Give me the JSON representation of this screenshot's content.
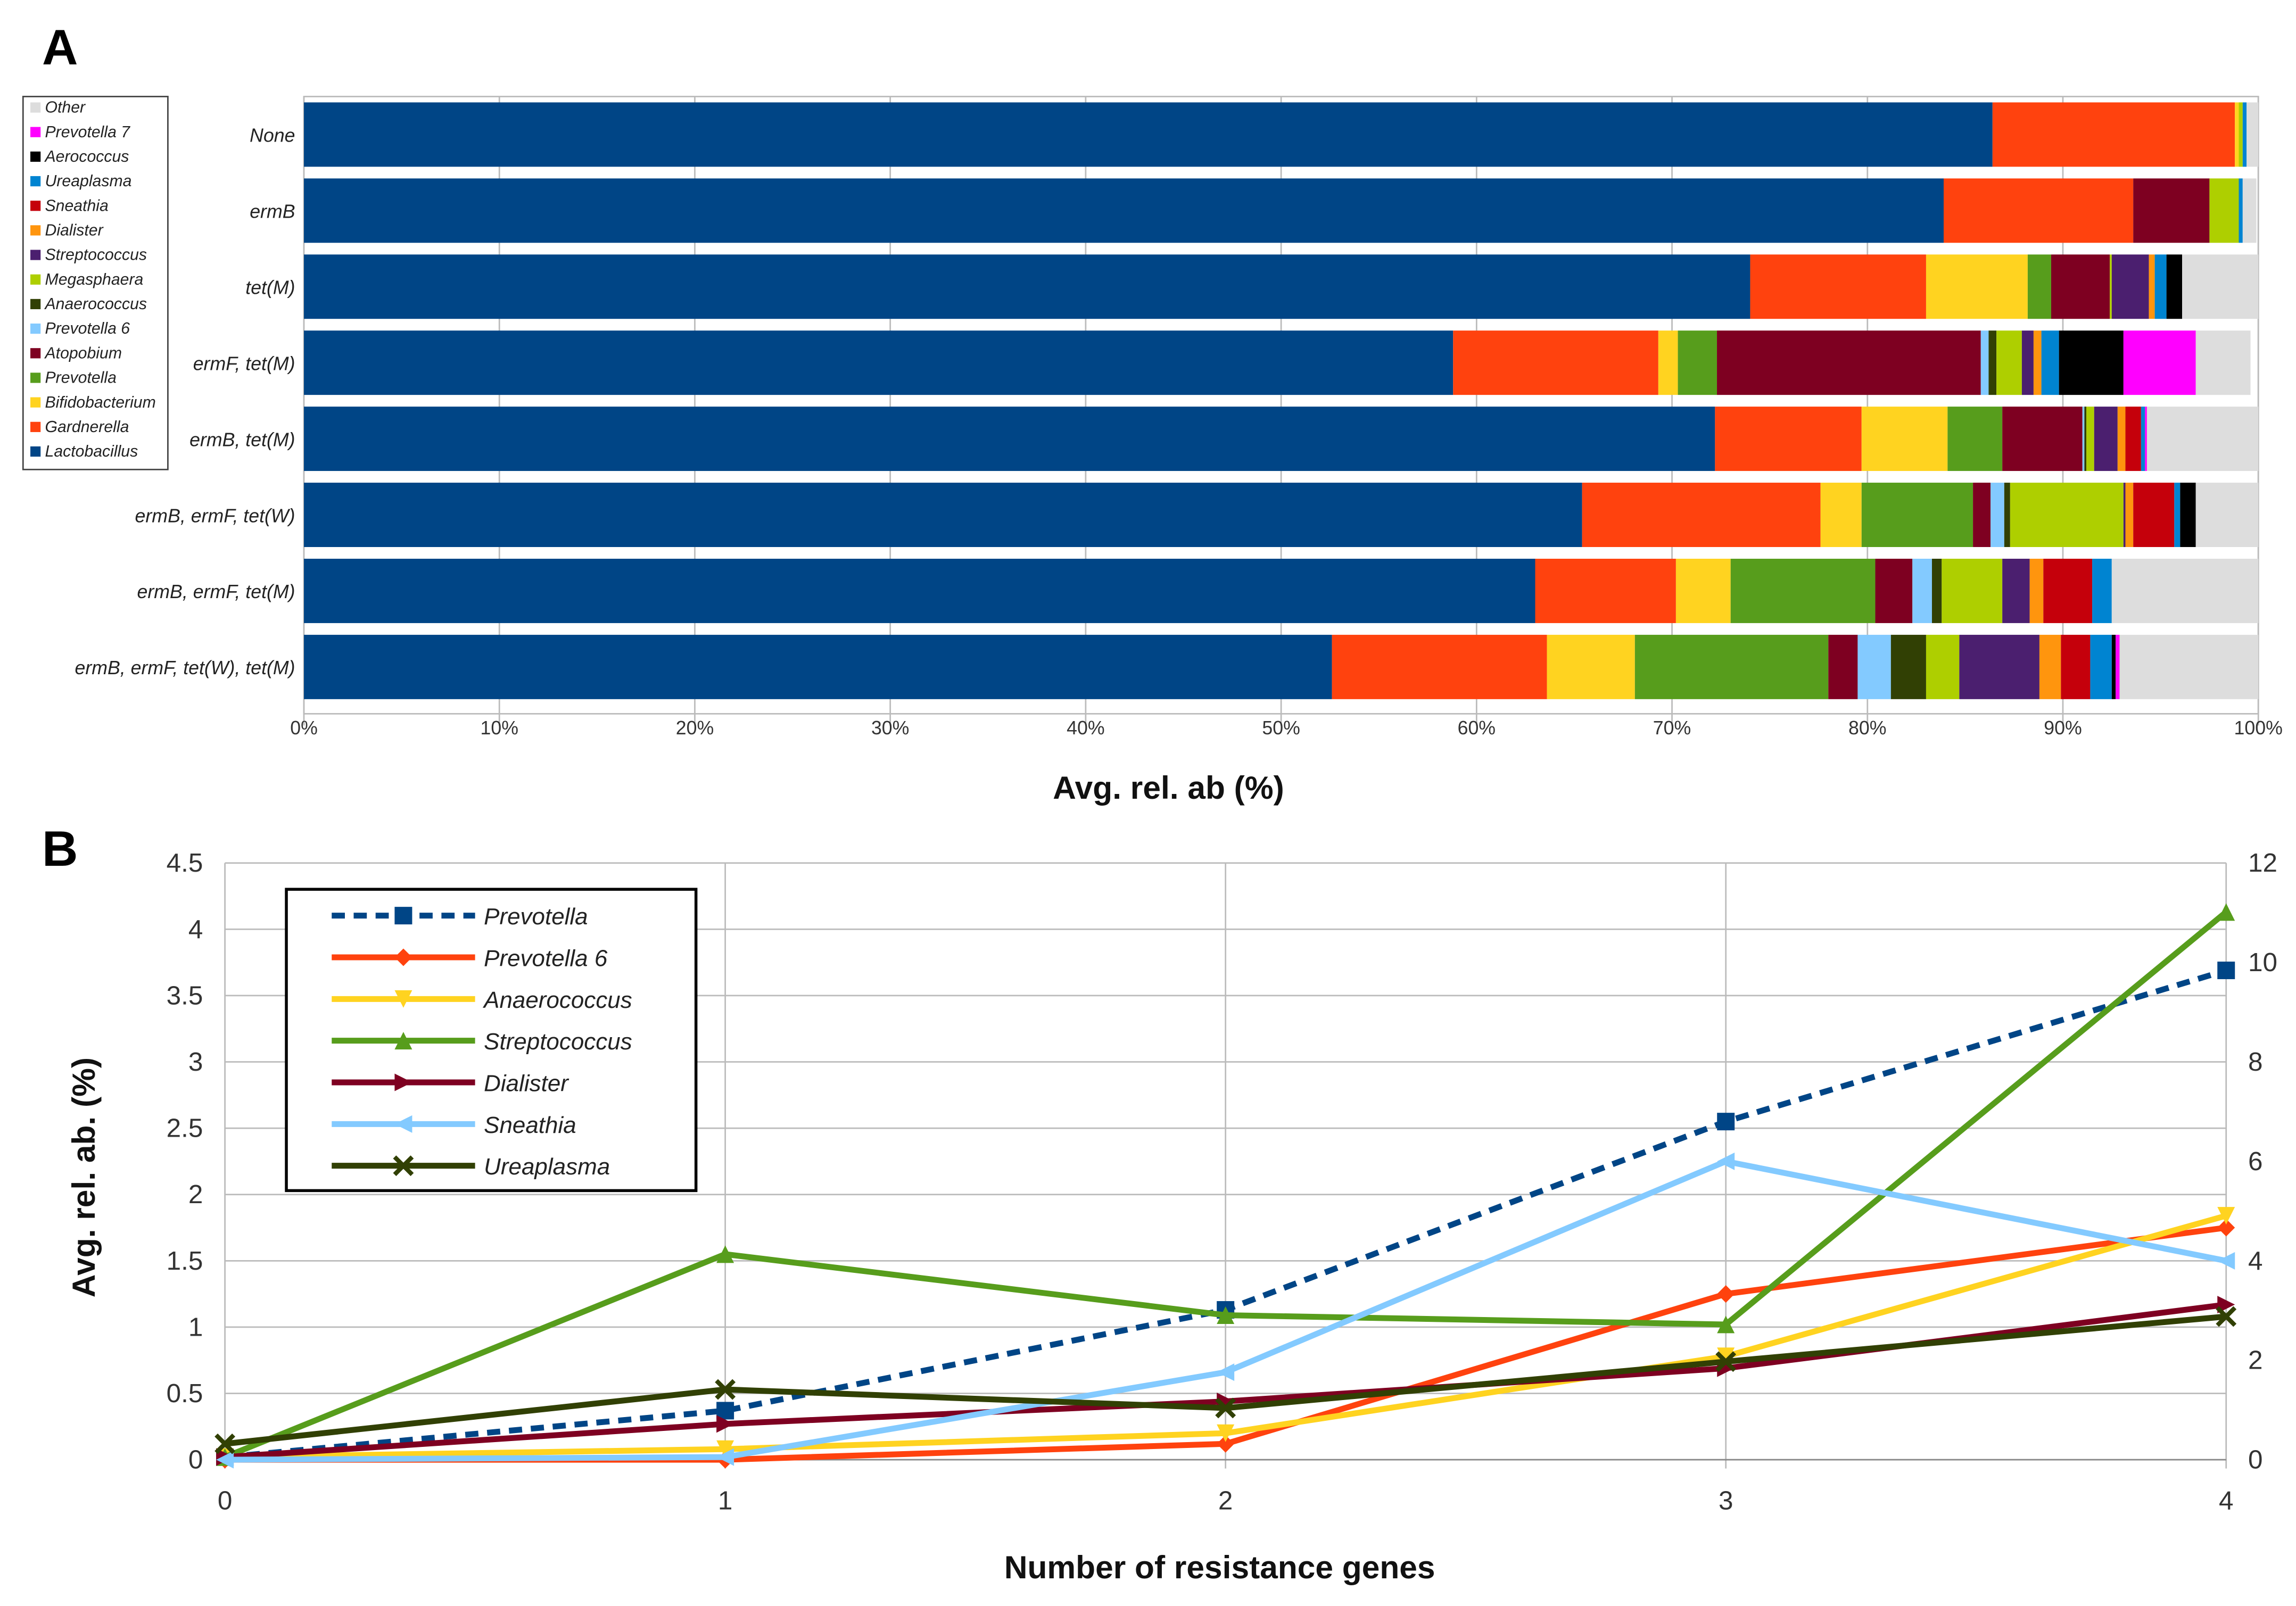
{
  "chart_data": [
    {
      "panel": "A",
      "type": "bar",
      "orientation": "horizontal",
      "stacked": true,
      "xlabel": "Avg. rel. ab (%)",
      "xlim": [
        0,
        100
      ],
      "xticks": [
        "0%",
        "10%",
        "20%",
        "30%",
        "40%",
        "50%",
        "60%",
        "70%",
        "80%",
        "90%",
        "100%"
      ],
      "categories": [
        "None",
        "ermB",
        "tet(M)",
        "ermF, tet(M)",
        "ermB, tet(M)",
        "ermB, ermF, tet(W)",
        "ermB, ermF, tet(M)",
        "ermB, ermF, tet(W), tet(M)"
      ],
      "series": [
        {
          "name": "Lactobacillus",
          "color": "#004586",
          "values": [
            86.4,
            83.9,
            74.0,
            58.8,
            72.2,
            65.4,
            63.0,
            52.6
          ]
        },
        {
          "name": "Gardnerella",
          "color": "#ff420e",
          "values": [
            12.4,
            9.7,
            9.0,
            10.5,
            7.5,
            12.2,
            7.2,
            11.0
          ]
        },
        {
          "name": "Bifidobacterium",
          "color": "#ffd320",
          "values": [
            0.2,
            0,
            5.2,
            1.0,
            4.4,
            2.1,
            2.8,
            4.5
          ]
        },
        {
          "name": "Prevotella",
          "color": "#579d1c",
          "values": [
            0,
            0,
            1.2,
            2.0,
            2.8,
            5.7,
            7.4,
            9.9
          ]
        },
        {
          "name": "Atopobium",
          "color": "#7e0021",
          "values": [
            0,
            3.9,
            3.0,
            13.5,
            4.1,
            0.9,
            1.9,
            1.5
          ]
        },
        {
          "name": "Prevotella 6",
          "color": "#83caff",
          "values": [
            0,
            0,
            0,
            0.4,
            0.1,
            0.7,
            1.0,
            1.7
          ]
        },
        {
          "name": "Anaerococcus",
          "color": "#314004",
          "values": [
            0,
            0,
            0,
            0.4,
            0.1,
            0.3,
            0.5,
            1.8
          ]
        },
        {
          "name": "Megasphaera",
          "color": "#aecf00",
          "values": [
            0.2,
            1.5,
            0.1,
            1.3,
            0.4,
            5.8,
            3.1,
            1.7
          ]
        },
        {
          "name": "Streptococcus",
          "color": "#4b1f6f",
          "values": [
            0,
            0,
            1.9,
            0.6,
            1.2,
            0.1,
            1.4,
            4.1
          ]
        },
        {
          "name": "Dialister",
          "color": "#ff950e",
          "values": [
            0,
            0,
            0.3,
            0.4,
            0.4,
            0.4,
            0.7,
            1.1
          ]
        },
        {
          "name": "Sneathia",
          "color": "#c5000b",
          "values": [
            0,
            0,
            0,
            0,
            0.8,
            2.1,
            2.5,
            1.5
          ]
        },
        {
          "name": "Ureaplasma",
          "color": "#0084d1",
          "values": [
            0.2,
            0.2,
            0.6,
            0.9,
            0.2,
            0.3,
            1.0,
            1.1
          ]
        },
        {
          "name": "Aerococcus",
          "color": "#000000",
          "values": [
            0,
            0,
            0.8,
            3.3,
            0,
            0.8,
            0,
            0.2
          ]
        },
        {
          "name": "Prevotella 7",
          "color": "#ff00ff",
          "values": [
            0,
            0,
            0,
            3.7,
            0.1,
            0,
            0,
            0.2
          ]
        },
        {
          "name": "Other",
          "color": "#dddddd",
          "values": [
            0.6,
            0.7,
            3.9,
            2.8,
            5.7,
            3.2,
            7.5,
            7.1
          ]
        }
      ],
      "legend": "left"
    },
    {
      "panel": "B",
      "type": "line",
      "xlabel": "Number of resistance genes",
      "ylabel": "Avg. rel. ab. (%)",
      "x": [
        0,
        1,
        2,
        3,
        4
      ],
      "ylim": [
        0,
        4.5
      ],
      "y2lim": [
        0,
        12
      ],
      "yticks": [
        "0",
        "0.5",
        "1",
        "1.5",
        "2",
        "2.5",
        "3",
        "3.5",
        "4",
        "4.5"
      ],
      "y2ticks": [
        "0",
        "2",
        "4",
        "6",
        "8",
        "10",
        "12"
      ],
      "xticks": [
        "0",
        "1",
        "2",
        "3",
        "4"
      ],
      "grid": true,
      "legend": "top-left",
      "series": [
        {
          "name": "Prevotella",
          "color": "#004586",
          "dash": true,
          "marker": "square",
          "values": [
            0.02,
            0.37,
            1.13,
            2.55,
            3.69
          ]
        },
        {
          "name": "Prevotella 6",
          "color": "#ff420e",
          "marker": "diamond",
          "values": [
            0,
            0,
            0.12,
            1.25,
            1.75
          ]
        },
        {
          "name": "Anaerococcus",
          "color": "#ffd320",
          "marker": "tri-down",
          "values": [
            0.02,
            0.08,
            0.2,
            0.78,
            1.84
          ]
        },
        {
          "name": "Streptococcus",
          "color": "#579d1c",
          "marker": "tri-up",
          "values": [
            0.02,
            1.55,
            1.09,
            1.02,
            4.13
          ]
        },
        {
          "name": "Dialister",
          "color": "#7e0021",
          "marker": "tri-right",
          "values": [
            0.02,
            0.27,
            0.44,
            0.69,
            1.17
          ]
        },
        {
          "name": "Sneathia",
          "color": "#83caff",
          "marker": "tri-left",
          "values": [
            0,
            0.02,
            0.66,
            2.25,
            1.5
          ]
        },
        {
          "name": "Ureaplasma",
          "color": "#314004",
          "marker": "x",
          "values": [
            0.12,
            0.53,
            0.39,
            0.74,
            1.08
          ]
        }
      ]
    }
  ],
  "labels": {
    "panelA": "A",
    "panelB": "B"
  }
}
